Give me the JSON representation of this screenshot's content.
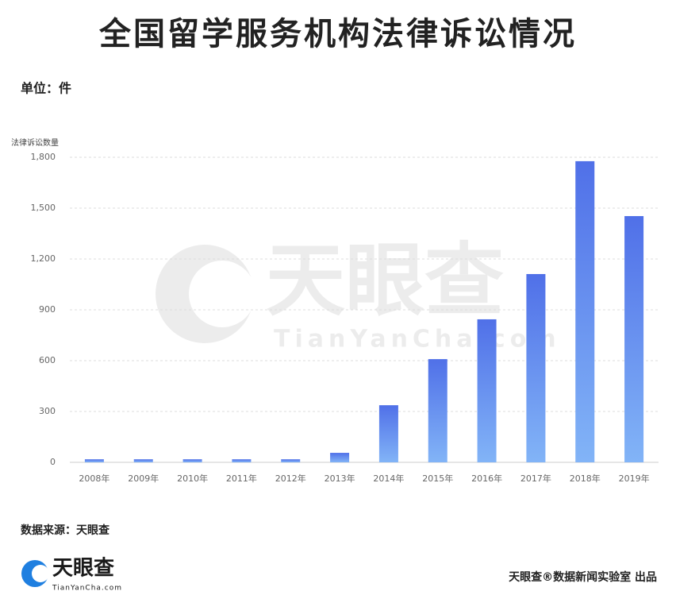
{
  "chart_data": {
    "type": "bar",
    "title": "全国留学服务机构法律诉讼情况",
    "unit_label": "单位：件",
    "y_label": "法律诉讼数量",
    "source": "数据来源：天眼查",
    "credit": "天眼查®数据新闻实验室 出品",
    "logo": {
      "name": "天眼查",
      "site": "TianYanCha.com"
    },
    "categories": [
      "2008年",
      "2009年",
      "2010年",
      "2011年",
      "2012年",
      "2013年",
      "2014年",
      "2015年",
      "2016年",
      "2017年",
      "2018年",
      "2019年"
    ],
    "values": [
      18,
      18,
      18,
      18,
      18,
      56,
      337,
      609,
      844,
      1111,
      1777,
      1453
    ],
    "gradient": [
      "#5070e8",
      "#82b4f7"
    ],
    "ylim": [
      0,
      1800
    ],
    "yticks": [
      0,
      300,
      600,
      900,
      {
        "value": 1200,
        "label": "1,200"
      },
      {
        "value": 1500,
        "label": "1,500"
      },
      {
        "value": 1800,
        "label": "1,800"
      }
    ],
    "grid": true
  }
}
